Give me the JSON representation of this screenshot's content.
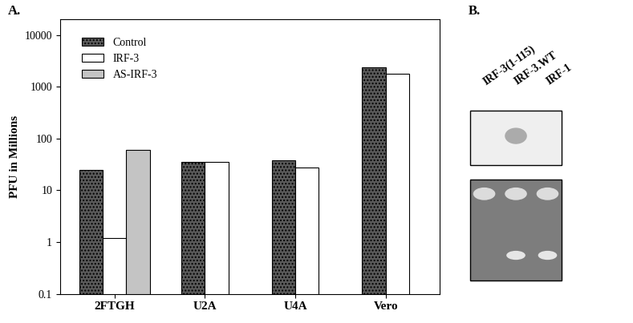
{
  "chart_data": {
    "type": "bar",
    "categories": [
      "2FTGH",
      "U2A",
      "U4A",
      "Vero"
    ],
    "series": [
      {
        "name": "Control",
        "color": "#5a5a5a",
        "values": [
          25,
          35,
          38,
          2400
        ]
      },
      {
        "name": "IRF-3",
        "color": "#ffffff",
        "values": [
          1.2,
          35,
          28,
          1800
        ]
      },
      {
        "name": "AS-IRF-3",
        "color": "#c4c4c4",
        "values": [
          60,
          null,
          null,
          null
        ]
      }
    ],
    "y_label": "PFU in Millions",
    "log": "y",
    "ylim": [
      0.1,
      20000
    ],
    "yticks": [
      0.1,
      1,
      10,
      100,
      1000,
      10000
    ],
    "legend": "upper left"
  },
  "panel_labels": [
    "A.",
    "B."
  ],
  "blot": {
    "lanes": [
      "IRF-3(1-115)",
      "IRF-3.WT",
      "IRF-1"
    ]
  }
}
